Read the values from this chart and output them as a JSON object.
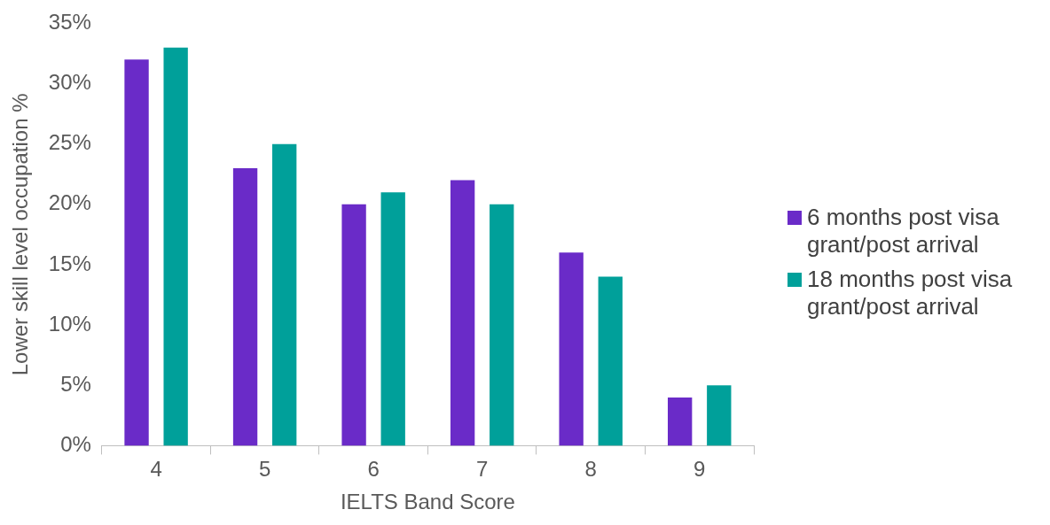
{
  "chart_data": {
    "type": "bar",
    "xlabel": "IELTS Band Score",
    "ylabel": "Lower skill level occupation %",
    "categories": [
      "4",
      "5",
      "6",
      "7",
      "8",
      "9"
    ],
    "series": [
      {
        "name": "6 months post visa grant/post arrival",
        "color": "#6a2bc8",
        "values": [
          32,
          23,
          20,
          22,
          16,
          4
        ]
      },
      {
        "name": "18 months post visa grant/post arrival",
        "color": "#00a09a",
        "values": [
          33,
          25,
          21,
          20,
          14,
          5
        ]
      }
    ],
    "ylim": [
      0,
      35
    ],
    "yticks": [
      {
        "value": 0,
        "label": "0%"
      },
      {
        "value": 5,
        "label": "5%"
      },
      {
        "value": 10,
        "label": "10%"
      },
      {
        "value": 15,
        "label": "15%"
      },
      {
        "value": 20,
        "label": "20%"
      },
      {
        "value": 25,
        "label": "25%"
      },
      {
        "value": 30,
        "label": "30%"
      },
      {
        "value": 35,
        "label": "35%"
      }
    ],
    "grid": false,
    "legend": "right"
  }
}
